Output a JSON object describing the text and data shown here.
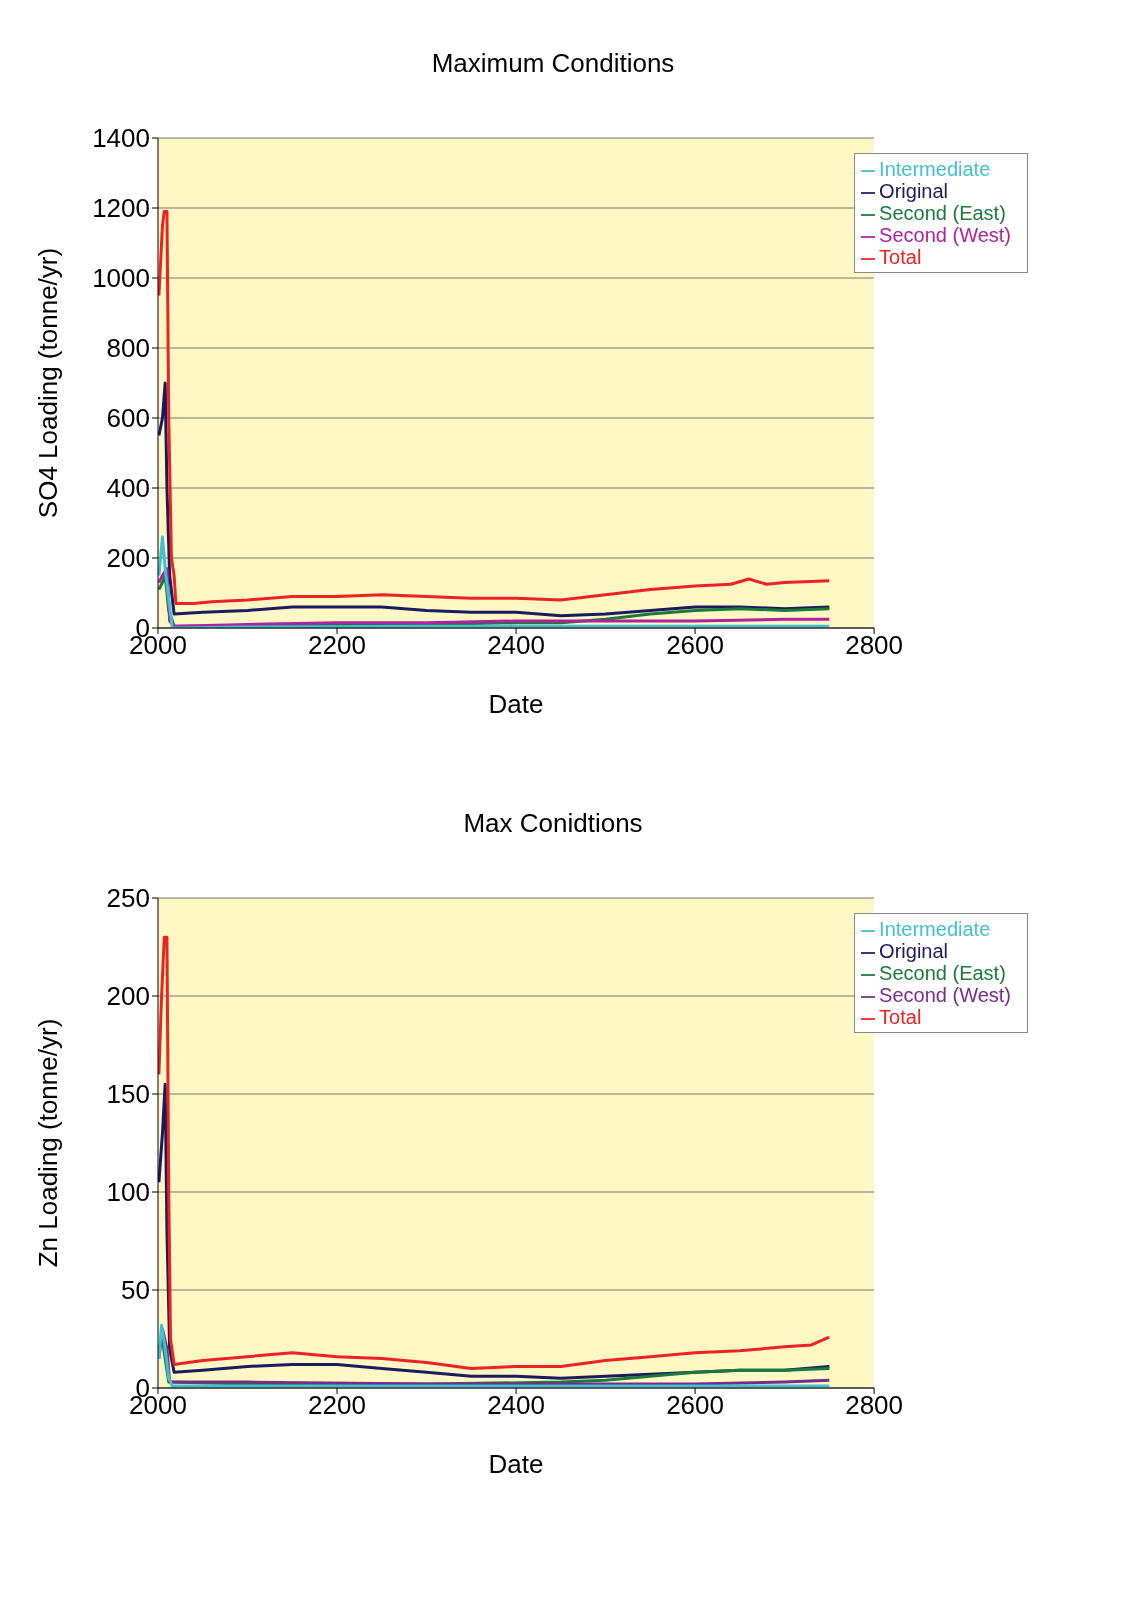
{
  "chart_data": [
    {
      "type": "line",
      "title": "Maximum Conditions",
      "xlabel": "Date",
      "ylabel": "SO4 Loading (tonne/yr)",
      "xlim": [
        2000,
        2800
      ],
      "xticks": [
        2000,
        2200,
        2400,
        2600,
        2800
      ],
      "ylim": [
        0,
        1400
      ],
      "yticks": [
        0,
        200,
        400,
        600,
        800,
        1000,
        1200,
        1400
      ],
      "grid": "y",
      "legend": "top right",
      "marker": "none",
      "line_style": "solid",
      "series": [
        {
          "name": "Original",
          "color": "#1a1a5e",
          "x": [
            2001,
            2005,
            2008,
            2010,
            2013,
            2018,
            2050,
            2100,
            2150,
            2200,
            2250,
            2300,
            2350,
            2400,
            2450,
            2500,
            2550,
            2600,
            2650,
            2700,
            2750
          ],
          "values": [
            550,
            600,
            700,
            400,
            150,
            40,
            45,
            50,
            60,
            60,
            60,
            50,
            45,
            45,
            35,
            40,
            50,
            60,
            60,
            55,
            60
          ]
        },
        {
          "name": "Second (East)",
          "color": "#1a7a3a",
          "x": [
            2001,
            2005,
            2008,
            2012,
            2018,
            2100,
            2200,
            2300,
            2400,
            2450,
            2500,
            2550,
            2600,
            2650,
            2700,
            2750
          ],
          "values": [
            110,
            130,
            150,
            50,
            5,
            5,
            10,
            10,
            15,
            15,
            25,
            40,
            50,
            55,
            50,
            55
          ]
        },
        {
          "name": "Second (West)",
          "color": "#b020a0",
          "x": [
            2001,
            2005,
            2010,
            2013,
            2018,
            2100,
            2200,
            2300,
            2400,
            2500,
            2600,
            2700,
            2750
          ],
          "values": [
            130,
            150,
            170,
            20,
            5,
            10,
            15,
            15,
            20,
            20,
            20,
            25,
            25
          ]
        },
        {
          "name": "Intermediate",
          "color": "#40c0d0",
          "x": [
            2001,
            2005,
            2008,
            2012,
            2016,
            2100,
            2300,
            2500,
            2750
          ],
          "values": [
            150,
            260,
            170,
            80,
            0,
            3,
            5,
            5,
            5
          ]
        },
        {
          "name": "Total",
          "color": "#ee2222",
          "x": [
            2001,
            2003,
            2005,
            2007,
            2010,
            2012,
            2015,
            2018,
            2020,
            2040,
            2060,
            2100,
            2150,
            2200,
            2250,
            2300,
            2350,
            2400,
            2450,
            2500,
            2550,
            2600,
            2640,
            2660,
            2680,
            2700,
            2750
          ],
          "values": [
            950,
            1050,
            1150,
            1190,
            1190,
            600,
            200,
            150,
            70,
            70,
            75,
            80,
            90,
            90,
            95,
            90,
            85,
            85,
            80,
            95,
            110,
            120,
            125,
            140,
            125,
            130,
            135
          ]
        }
      ]
    },
    {
      "type": "line",
      "title": "Max Conidtions",
      "xlabel": "Date",
      "ylabel": "Zn Loading (tonne/yr)",
      "xlim": [
        2000,
        2800
      ],
      "xticks": [
        2000,
        2200,
        2400,
        2600,
        2800
      ],
      "ylim": [
        0,
        250
      ],
      "yticks": [
        0,
        50,
        100,
        150,
        200,
        250
      ],
      "grid": "y",
      "legend": "top right",
      "marker": "none",
      "line_style": "solid",
      "series": [
        {
          "name": "Original",
          "color": "#1a1a5e",
          "x": [
            2001,
            2005,
            2008,
            2010,
            2013,
            2018,
            2050,
            2100,
            2150,
            2200,
            2250,
            2300,
            2350,
            2400,
            2450,
            2500,
            2550,
            2600,
            2650,
            2700,
            2750
          ],
          "values": [
            105,
            130,
            155,
            80,
            20,
            8,
            9,
            11,
            12,
            12,
            10,
            8,
            6,
            6,
            5,
            6,
            7,
            8,
            9,
            9,
            11
          ]
        },
        {
          "name": "Second (East)",
          "color": "#1a7a3a",
          "x": [
            2001,
            2005,
            2008,
            2012,
            2100,
            2300,
            2450,
            2500,
            2550,
            2600,
            2650,
            2700,
            2750
          ],
          "values": [
            20,
            25,
            15,
            3,
            2,
            2,
            3,
            4,
            6,
            8,
            9,
            9,
            10
          ]
        },
        {
          "name": "Second (West)",
          "color": "#7a2a8a",
          "x": [
            2001,
            2005,
            2010,
            2013,
            2100,
            2300,
            2500,
            2600,
            2700,
            2750
          ],
          "values": [
            15,
            30,
            20,
            3,
            3,
            2,
            2,
            2,
            3,
            4
          ]
        },
        {
          "name": "Intermediate",
          "color": "#40c0d0",
          "x": [
            2001,
            2004,
            2008,
            2012,
            2016,
            2300,
            2500,
            2750
          ],
          "values": [
            15,
            32,
            20,
            5,
            1,
            1,
            1,
            1
          ]
        },
        {
          "name": "Total",
          "color": "#ee2222",
          "x": [
            2001,
            2004,
            2007,
            2010,
            2012,
            2014,
            2018,
            2050,
            2100,
            2150,
            2200,
            2250,
            2300,
            2350,
            2400,
            2450,
            2500,
            2550,
            2600,
            2650,
            2700,
            2730,
            2750
          ],
          "values": [
            160,
            200,
            230,
            230,
            100,
            25,
            12,
            14,
            16,
            18,
            16,
            15,
            13,
            10,
            11,
            11,
            14,
            16,
            18,
            19,
            21,
            22,
            26
          ]
        }
      ]
    }
  ]
}
